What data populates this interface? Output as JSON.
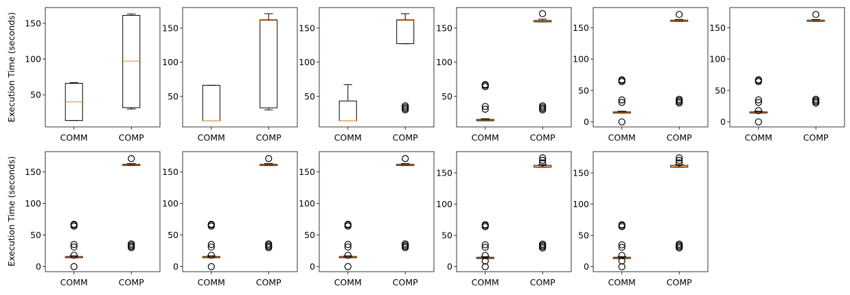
{
  "figure": {
    "ylabel": "Execution Time (seconds)"
  },
  "chart_data": [
    {
      "type": "box",
      "categories": [
        "COMM",
        "COMP"
      ],
      "ylim": [
        5,
        172
      ],
      "yticks": [
        50,
        100,
        150
      ],
      "boxes": [
        {
          "whislo": 14,
          "q1": 14,
          "med": 40,
          "q3": 66,
          "whishi": 67,
          "fliers": []
        },
        {
          "whislo": 30,
          "q1": 32,
          "med": 97,
          "q3": 161,
          "whishi": 163,
          "fliers": []
        }
      ]
    },
    {
      "type": "box",
      "categories": [
        "COMM",
        "COMP"
      ],
      "ylim": [
        5,
        180
      ],
      "yticks": [
        50,
        100,
        150
      ],
      "boxes": [
        {
          "whislo": 14,
          "q1": 14,
          "med": 14,
          "q3": 66,
          "whishi": 66,
          "fliers": []
        },
        {
          "whislo": 30,
          "q1": 33,
          "med": 161,
          "q3": 162,
          "whishi": 171,
          "fliers": []
        }
      ]
    },
    {
      "type": "box",
      "categories": [
        "COMM",
        "COMP"
      ],
      "ylim": [
        5,
        180
      ],
      "yticks": [
        50,
        100,
        150
      ],
      "boxes": [
        {
          "whislo": 14,
          "q1": 14,
          "med": 14,
          "q3": 43,
          "whishi": 67,
          "fliers": []
        },
        {
          "whislo": 127,
          "q1": 127,
          "med": 161,
          "q3": 162,
          "whishi": 171,
          "fliers": [
            30,
            32,
            34,
            36
          ]
        }
      ]
    },
    {
      "type": "box",
      "categories": [
        "COMM",
        "COMP"
      ],
      "ylim": [
        5,
        180
      ],
      "yticks": [
        50,
        100,
        150
      ],
      "boxes": [
        {
          "whislo": 14,
          "q1": 14,
          "med": 15,
          "q3": 16,
          "whishi": 17,
          "fliers": [
            31,
            35,
            64,
            66,
            67
          ]
        },
        {
          "whislo": 159,
          "q1": 159,
          "med": 160,
          "q3": 161,
          "whishi": 163,
          "fliers": [
            30,
            32,
            34,
            36,
            171
          ]
        }
      ]
    },
    {
      "type": "box",
      "categories": [
        "COMM",
        "COMP"
      ],
      "ylim": [
        -8,
        182
      ],
      "yticks": [
        0,
        50,
        100,
        150
      ],
      "boxes": [
        {
          "whislo": 14,
          "q1": 14,
          "med": 15,
          "q3": 16,
          "whishi": 17,
          "fliers": [
            0,
            31,
            35,
            64,
            66,
            67
          ]
        },
        {
          "whislo": 160,
          "q1": 160,
          "med": 161,
          "q3": 162,
          "whishi": 163,
          "fliers": [
            30,
            32,
            34,
            36,
            171
          ]
        }
      ]
    },
    {
      "type": "box",
      "categories": [
        "COMM",
        "COMP"
      ],
      "ylim": [
        -8,
        182
      ],
      "yticks": [
        0,
        50,
        100,
        150
      ],
      "boxes": [
        {
          "whislo": 14,
          "q1": 14,
          "med": 15,
          "q3": 16,
          "whishi": 17,
          "fliers": [
            0,
            18,
            31,
            35,
            64,
            66,
            67
          ]
        },
        {
          "whislo": 160,
          "q1": 160,
          "med": 161,
          "q3": 162,
          "whishi": 163,
          "fliers": [
            30,
            32,
            34,
            36,
            171
          ]
        }
      ]
    },
    {
      "type": "box",
      "categories": [
        "COMM",
        "COMP"
      ],
      "ylim": [
        -8,
        182
      ],
      "yticks": [
        0,
        50,
        100,
        150
      ],
      "boxes": [
        {
          "whislo": 14,
          "q1": 14,
          "med": 15,
          "q3": 16,
          "whishi": 17,
          "fliers": [
            0,
            18,
            31,
            35,
            64,
            66,
            67
          ]
        },
        {
          "whislo": 160,
          "q1": 160,
          "med": 161,
          "q3": 162,
          "whishi": 163,
          "fliers": [
            30,
            32,
            34,
            36,
            171
          ]
        }
      ]
    },
    {
      "type": "box",
      "categories": [
        "COMM",
        "COMP"
      ],
      "ylim": [
        -8,
        182
      ],
      "yticks": [
        0,
        50,
        100,
        150
      ],
      "boxes": [
        {
          "whislo": 14,
          "q1": 14,
          "med": 15,
          "q3": 16,
          "whishi": 17,
          "fliers": [
            0,
            18,
            31,
            35,
            64,
            66,
            67
          ]
        },
        {
          "whislo": 160,
          "q1": 160,
          "med": 161,
          "q3": 162,
          "whishi": 163,
          "fliers": [
            30,
            32,
            34,
            36,
            171
          ]
        }
      ]
    },
    {
      "type": "box",
      "categories": [
        "COMM",
        "COMP"
      ],
      "ylim": [
        -8,
        182
      ],
      "yticks": [
        0,
        50,
        100,
        150
      ],
      "boxes": [
        {
          "whislo": 14,
          "q1": 14,
          "med": 15,
          "q3": 16,
          "whishi": 17,
          "fliers": [
            0,
            18,
            31,
            35,
            64,
            66,
            67
          ]
        },
        {
          "whislo": 160,
          "q1": 160,
          "med": 161,
          "q3": 162,
          "whishi": 163,
          "fliers": [
            30,
            32,
            34,
            36,
            171
          ]
        }
      ]
    },
    {
      "type": "box",
      "categories": [
        "COMM",
        "COMP"
      ],
      "ylim": [
        -8,
        184
      ],
      "yticks": [
        0,
        50,
        100,
        150
      ],
      "boxes": [
        {
          "whislo": 13,
          "q1": 13,
          "med": 14,
          "q3": 15,
          "whishi": 16,
          "fliers": [
            0,
            9,
            18,
            31,
            35,
            64,
            66,
            67
          ]
        },
        {
          "whislo": 159,
          "q1": 159,
          "med": 160,
          "q3": 162,
          "whishi": 163,
          "fliers": [
            30,
            32,
            34,
            36,
            166,
            170,
            174
          ]
        }
      ]
    },
    {
      "type": "box",
      "categories": [
        "COMM",
        "COMP"
      ],
      "ylim": [
        -8,
        184
      ],
      "yticks": [
        0,
        50,
        100,
        150
      ],
      "boxes": [
        {
          "whislo": 13,
          "q1": 13,
          "med": 14,
          "q3": 15,
          "whishi": 16,
          "fliers": [
            0,
            9,
            18,
            31,
            35,
            64,
            66,
            67
          ]
        },
        {
          "whislo": 159,
          "q1": 159,
          "med": 160,
          "q3": 162,
          "whishi": 163,
          "fliers": [
            30,
            32,
            34,
            36,
            166,
            170,
            174
          ]
        }
      ]
    }
  ]
}
